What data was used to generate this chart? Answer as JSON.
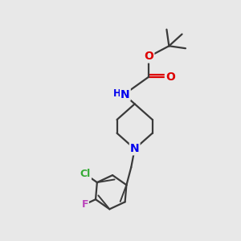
{
  "background_color": "#e8e8e8",
  "bond_color": "#3a3a3a",
  "atom_colors": {
    "N": "#0000ee",
    "O": "#dd0000",
    "Cl": "#33aa33",
    "F": "#bb44bb",
    "C": "#3a3a3a"
  },
  "figsize": [
    3.0,
    3.0
  ],
  "dpi": 100
}
